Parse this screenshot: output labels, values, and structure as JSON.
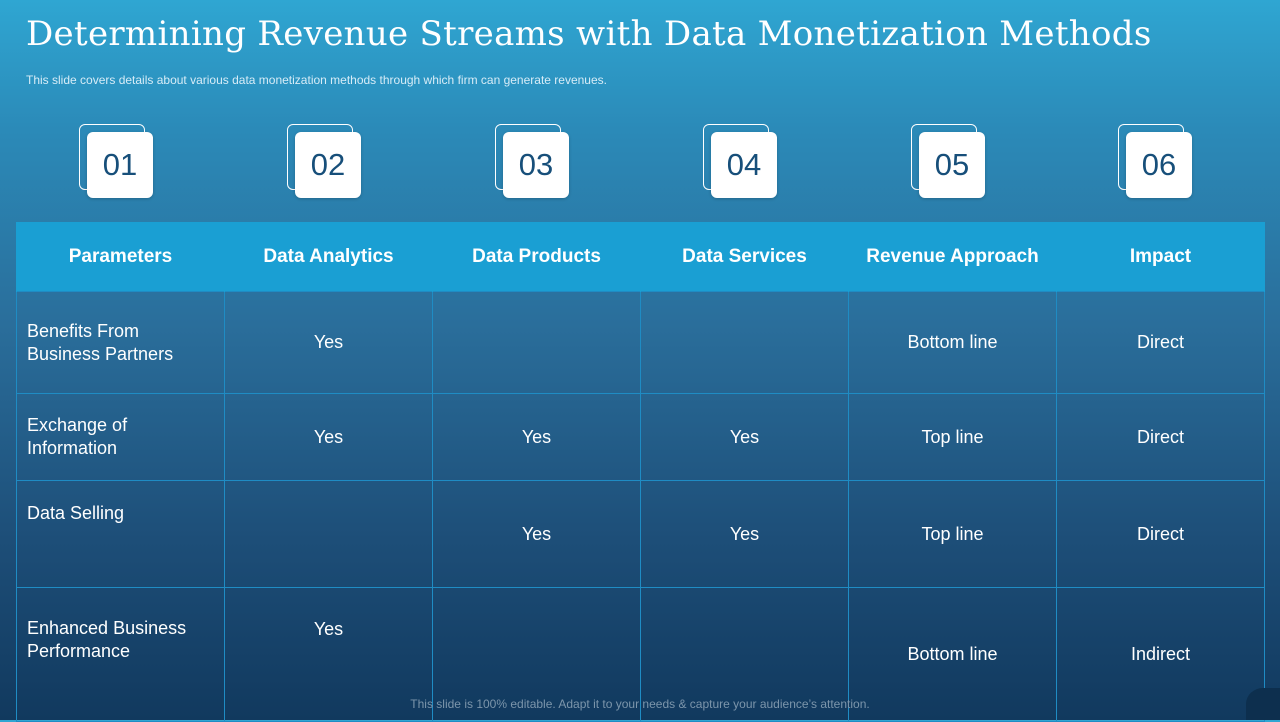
{
  "slide": {
    "title": "Determining Revenue Streams with Data Monetization Methods",
    "subtitle": "This slide covers details about various  data monetization methods through  which firm can generate revenues.",
    "footer": "This slide is 100%  editable.  Adapt it to your needs & capture your audience’s attention."
  },
  "numbers": [
    "01",
    "02",
    "03",
    "04",
    "05",
    "06"
  ],
  "table": {
    "headers": [
      "Parameters",
      "Data Analytics",
      "Data Products",
      "Data Services",
      "Revenue Approach",
      "Impact"
    ],
    "rows": [
      {
        "parameter": "Benefits From Business Partners",
        "data_analytics": "Yes",
        "data_products": "",
        "data_services": "",
        "revenue_approach": "Bottom line",
        "impact": "Direct"
      },
      {
        "parameter": "Exchange of Information",
        "data_analytics": "Yes",
        "data_products": "Yes",
        "data_services": "Yes",
        "revenue_approach": "Top line",
        "impact": "Direct"
      },
      {
        "parameter": "Data Selling",
        "data_analytics": "",
        "data_products": "Yes",
        "data_services": "Yes",
        "revenue_approach": "Top line",
        "impact": "Direct"
      },
      {
        "parameter": "Enhanced Business Performance",
        "data_analytics": "Yes",
        "data_products": "",
        "data_services": "",
        "revenue_approach": "Bottom line",
        "impact": "Indirect"
      }
    ]
  }
}
